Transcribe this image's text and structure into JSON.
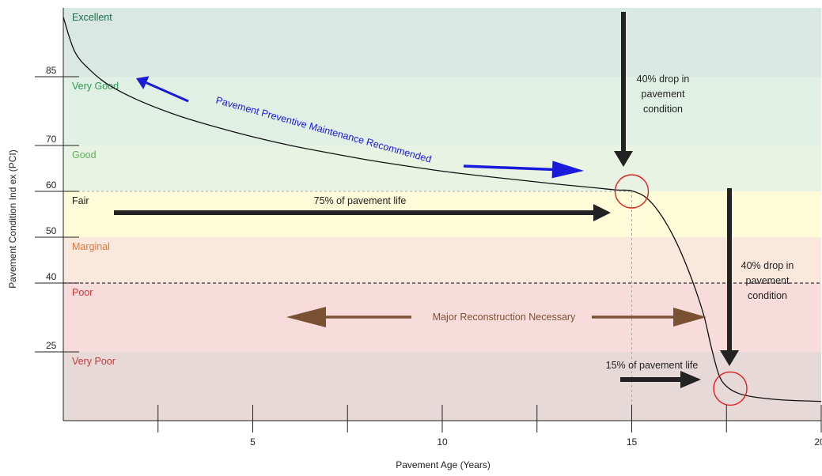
{
  "chart_data": {
    "type": "line",
    "title": "",
    "xlabel": "Pavement Age (Years)",
    "ylabel": "Pavement Condition Ind ex (PCI)",
    "xlim": [
      0,
      20
    ],
    "ylim": [
      10,
      100
    ],
    "x_ticks_major": [
      5,
      10,
      15,
      20
    ],
    "x_ticks_minor": [
      2.5,
      7.5,
      12.5,
      17.5
    ],
    "y_ticks": [
      25,
      40,
      50,
      60,
      70,
      85
    ],
    "bands": [
      {
        "label": "Excellent",
        "from": 85,
        "to": 100,
        "color": "#d9e8e2",
        "label_color": "#1e6b4a"
      },
      {
        "label": "Very Good",
        "from": 70,
        "to": 85,
        "color": "#e0f0e4",
        "label_color": "#2e9a50"
      },
      {
        "label": "Good",
        "from": 60,
        "to": 70,
        "color": "#e8f3e3",
        "label_color": "#5fb35a"
      },
      {
        "label": "Fair",
        "from": 50,
        "to": 60,
        "color": "#fdfbd8",
        "label_color": "#222222"
      },
      {
        "label": "Marginal",
        "from": 40,
        "to": 50,
        "color": "#fbe8dc",
        "label_color": "#e07840"
      },
      {
        "label": "Poor",
        "from": 25,
        "to": 40,
        "color": "#f8dcdc",
        "label_color": "#d03838"
      },
      {
        "label": "Very Poor",
        "from": 10,
        "to": 25,
        "color": "#e8d9d9",
        "label_color": "#c03a3a"
      }
    ],
    "series": [
      {
        "x": [
          0,
          0.3,
          0.7,
          1.2,
          2,
          3,
          4,
          5,
          6,
          7,
          8,
          9,
          10,
          11,
          12,
          13,
          14,
          14.6,
          15,
          15.4,
          15.8,
          16.2,
          16.6,
          16.9,
          17.1,
          17.3,
          17.5,
          17.8,
          18.2,
          19,
          20
        ],
        "y": [
          98,
          90.5,
          86.5,
          83.2,
          79.8,
          76.6,
          74.1,
          71.9,
          70.0,
          68.4,
          66.9,
          65.6,
          64.4,
          63.4,
          62.5,
          61.6,
          60.8,
          60.3,
          60.1,
          58.5,
          54.5,
          48.5,
          40.5,
          33.0,
          26.0,
          20.0,
          17.5,
          16.0,
          15.2,
          14.5,
          14.2
        ]
      }
    ],
    "reference_lines": [
      {
        "axis": "y",
        "value": 40,
        "style": "dashed"
      },
      {
        "axis": "y",
        "value": 60,
        "style": "dotted",
        "x_to": 15
      },
      {
        "axis": "x",
        "value": 15,
        "style": "dotted",
        "y_to": 60
      }
    ],
    "markers": [
      {
        "x": 15,
        "y": 60
      },
      {
        "x": 17.6,
        "y": 17
      }
    ],
    "annotations": {
      "ppm": "Pavement Preventive Maintenance Recommended",
      "life75": "75% of pavement life",
      "life15": "15% of pavement life",
      "reconstruction": "Major Reconstruction Necessary",
      "drop1": [
        "40% drop in",
        "pavement",
        "condition"
      ],
      "drop2": [
        "40% drop in",
        "pavement",
        "condition"
      ]
    },
    "colors": {
      "ppm": "#1a1adb",
      "reconstruction": "#7a5233",
      "black_arrow": "#222222",
      "marker": "#e02020"
    }
  }
}
